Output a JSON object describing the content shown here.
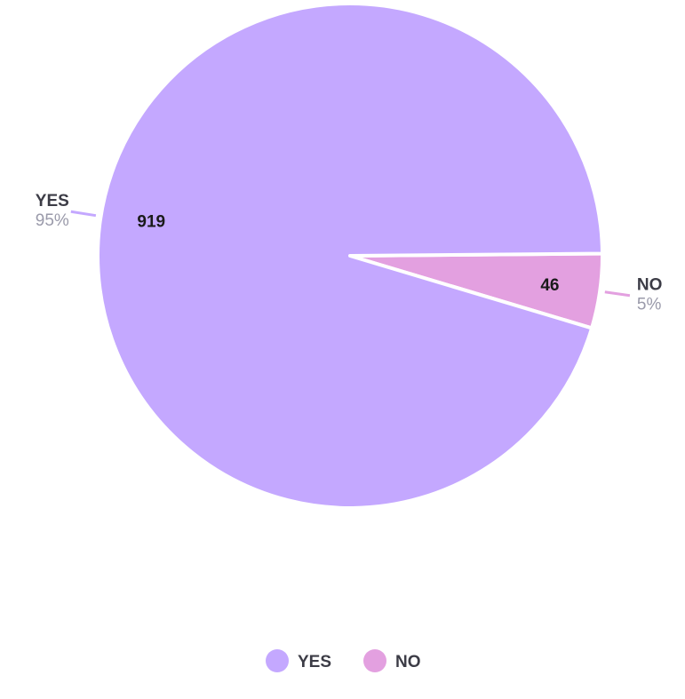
{
  "chart_data": {
    "type": "pie",
    "title": "",
    "slices": [
      {
        "label": "YES",
        "value": 919,
        "percent_label": "95%",
        "color": "#c4a8ff"
      },
      {
        "label": "NO",
        "value": 46,
        "percent_label": "5%",
        "color": "#e3a0e0"
      }
    ],
    "legend": {
      "placement": "bottom-center",
      "entries": [
        "YES",
        "NO"
      ]
    },
    "start_angle_deg": 90,
    "direction": "clockwise"
  }
}
